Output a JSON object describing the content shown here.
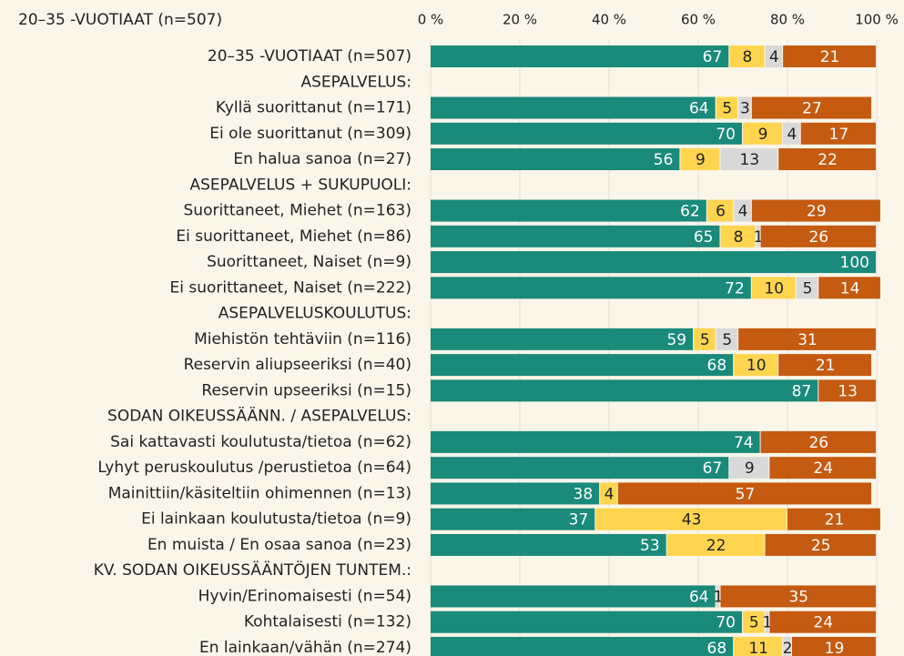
{
  "chart_data": {
    "type": "stacked-bar",
    "orientation": "horizontal",
    "title": "20–35 -VUOTIAAT (n=507)",
    "categories": [
      "20–35 -VUOTIAAT (n=507)",
      "ASEPALVELUS:",
      "Kyllä suorittanut (n=171)",
      "Ei ole suorittanut (n=309)",
      "En halua sanoa (n=27)",
      "ASEPALVELUS + SUKUPUOLI:",
      "Suorittaneet, Miehet (n=163)",
      "Ei suorittaneet, Miehet (n=86)",
      "Suorittaneet, Naiset (n=9)",
      "Ei suorittaneet, Naiset (n=222)",
      "ASEPALVELUSKOULUTUS:",
      "Miehistön tehtäviin (n=116)",
      "Reservin aliupseeriksi (n=40)",
      "Reservin upseeriksi (n=15)",
      "SODAN OIKEUSSÄÄNN. / ASEPALVELUS:",
      "Sai kattavasti koulutusta/tietoa (n=62)",
      "Lyhyt peruskoulutus /perustietoa (n=64)",
      "Mainittiin/käsiteltiin ohimennen (n=13)",
      "Ei lainkaan koulutusta/tietoa (n=9)",
      "En muista / En osaa sanoa (n=23)",
      "KV. SODAN OIKEUSSÄÄNTÖJEN TUNTEM.:",
      "Hyvin/Erinomaisesti (n=54)",
      "Kohtalaisesti (n=132)",
      "En lainkaan/vähän (n=274)"
    ],
    "series": [
      {
        "color": "#1a8a7a",
        "values": [
          67,
          null,
          64,
          70,
          56,
          null,
          62,
          65,
          100,
          72,
          null,
          59,
          68,
          87,
          null,
          74,
          67,
          38,
          37,
          53,
          null,
          64,
          70,
          68
        ]
      },
      {
        "color": "#ffd54f",
        "values": [
          8,
          null,
          5,
          9,
          9,
          null,
          6,
          8,
          null,
          10,
          null,
          5,
          10,
          null,
          null,
          null,
          null,
          4,
          43,
          22,
          null,
          null,
          5,
          11
        ]
      },
      {
        "color": "#d9d9d9",
        "values": [
          4,
          null,
          3,
          4,
          13,
          null,
          4,
          1,
          null,
          5,
          null,
          5,
          null,
          null,
          null,
          null,
          9,
          null,
          null,
          null,
          null,
          1,
          1,
          2
        ]
      },
      {
        "color": "#c55a11",
        "values": [
          21,
          null,
          27,
          17,
          22,
          null,
          29,
          26,
          null,
          14,
          null,
          31,
          21,
          13,
          null,
          26,
          24,
          57,
          21,
          25,
          null,
          35,
          24,
          19
        ]
      }
    ],
    "xlim": [
      0,
      100
    ],
    "xticks": [
      {
        "value": 0,
        "label": "0 %"
      },
      {
        "value": 20,
        "label": "20 %"
      },
      {
        "value": 40,
        "label": "40 %"
      },
      {
        "value": 60,
        "label": "60 %"
      },
      {
        "value": 80,
        "label": "80 %"
      },
      {
        "value": 100,
        "label": "100 %"
      }
    ],
    "grid": true
  }
}
